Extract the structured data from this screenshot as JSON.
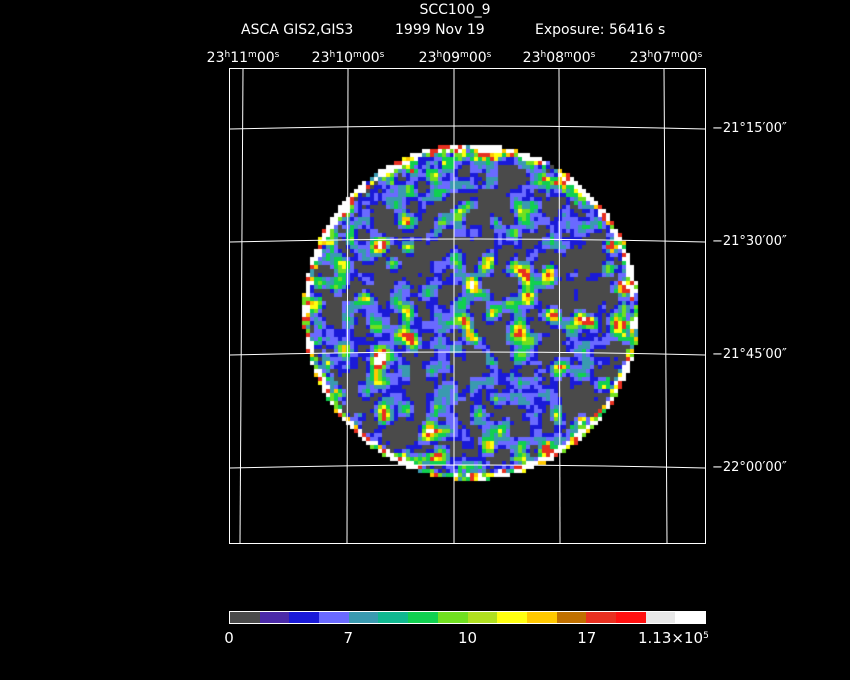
{
  "header": {
    "title": "SCC100_9",
    "subtitle_instrument": "ASCA GIS2,GIS3",
    "subtitle_date": "1999 Nov 19",
    "subtitle_exposure": "Exposure: 56416 s"
  },
  "ra_axis": [
    {
      "h": "23",
      "m": "11",
      "s": "00"
    },
    {
      "h": "23",
      "m": "10",
      "s": "00"
    },
    {
      "h": "23",
      "m": "09",
      "s": "00"
    },
    {
      "h": "23",
      "m": "08",
      "s": "00"
    },
    {
      "h": "23",
      "m": "07",
      "s": "00"
    }
  ],
  "dec_axis": [
    "−21°15′00″",
    "−21°30′00″",
    "−21°45′00″",
    "−22°00′00″"
  ],
  "colorbar": {
    "colors": [
      "#4a4a4a",
      "#4b2aa8",
      "#1a1ad8",
      "#6a6aff",
      "#3a9ab0",
      "#10b890",
      "#10d050",
      "#70e020",
      "#b0e020",
      "#ffff10",
      "#ffc800",
      "#c07000",
      "#e83020",
      "#ff1010",
      "#e8e8e8",
      "#ffffff"
    ],
    "labels": [
      {
        "text": "0",
        "frac": 0.0
      },
      {
        "text": "7",
        "frac": 0.25
      },
      {
        "text": "10",
        "frac": 0.5
      },
      {
        "text": "17",
        "frac": 0.75
      }
    ],
    "max_label_mantissa": "1.13×10",
    "max_label_exp": "5"
  }
}
